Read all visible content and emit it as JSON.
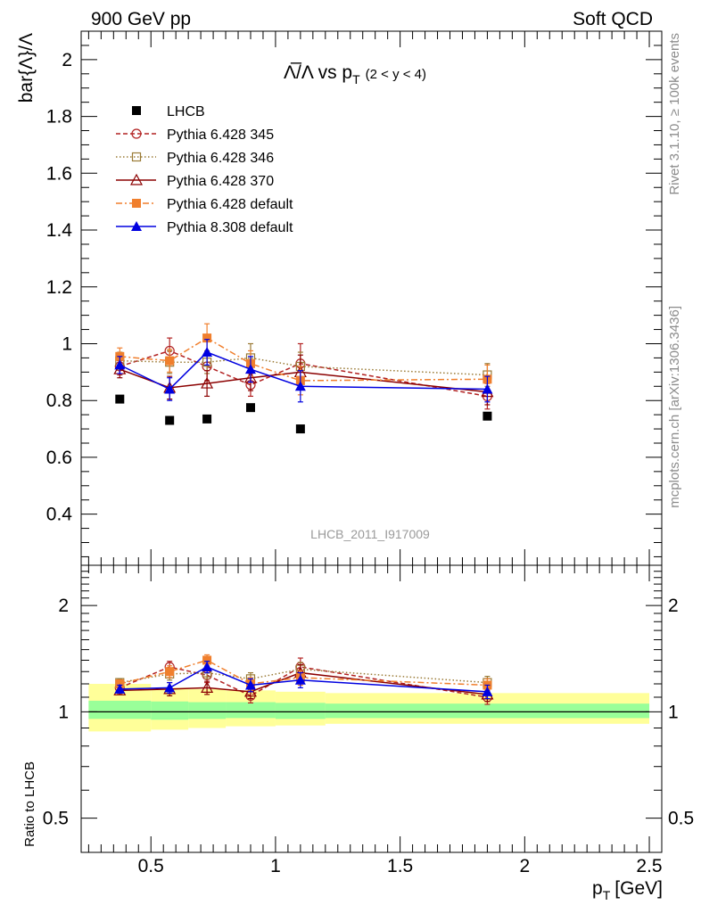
{
  "header": {
    "left": "900 GeV pp",
    "right": "Soft QCD"
  },
  "side": {
    "rivet": "Rivet 3.1.10, ≥ 100k events",
    "mcplots": "mcplots.cern.ch [arXiv:1306.3436]"
  },
  "chart_data": [
    {
      "type": "line",
      "title_main": "Λ̅/Λ vs p",
      "title_sub": "T",
      "title_cut": "(2 < y < 4)",
      "ylabel": "bar{Λ}/Λ",
      "watermark": "LHCB_2011_I917009",
      "xlim": [
        0.22,
        2.55
      ],
      "ylim": [
        0.22,
        2.1
      ],
      "yticks": [
        0.4,
        0.6,
        0.8,
        1.0,
        1.2,
        1.4,
        1.6,
        1.8,
        2.0
      ],
      "ytick_labels": [
        "0.4",
        "0.6",
        "0.8",
        "1",
        "1.2",
        "1.4",
        "1.6",
        "1.8",
        "2"
      ],
      "legend_position": "top-left",
      "series": [
        {
          "name": "LHCB",
          "color": "#000000",
          "marker": "square-filled",
          "dash": "none",
          "x": [
            0.375,
            0.575,
            0.725,
            0.9,
            1.1,
            1.85
          ],
          "y": [
            0.805,
            0.73,
            0.735,
            0.775,
            0.7,
            0.745
          ],
          "err": [
            0,
            0,
            0,
            0,
            0,
            0
          ]
        },
        {
          "name": "Pythia 6.428 345",
          "color": "#b22222",
          "marker": "circle-open",
          "dash": "5,3",
          "x": [
            0.375,
            0.575,
            0.725,
            0.9,
            1.1,
            1.85
          ],
          "y": [
            0.92,
            0.975,
            0.92,
            0.855,
            0.93,
            0.815
          ],
          "err": [
            0.03,
            0.045,
            0.05,
            0.04,
            0.07,
            0.045
          ]
        },
        {
          "name": "Pythia 6.428 346",
          "color": "#9a7a35",
          "marker": "square-open",
          "dash": "1.5,2.5",
          "x": [
            0.375,
            0.575,
            0.725,
            0.9,
            1.1,
            1.85
          ],
          "y": [
            0.94,
            0.935,
            0.935,
            0.95,
            0.92,
            0.89
          ],
          "err": [
            0.03,
            0.04,
            0.04,
            0.05,
            0.05,
            0.04
          ]
        },
        {
          "name": "Pythia 6.428 370",
          "color": "#8b0000",
          "marker": "triangle-open",
          "dash": "none",
          "x": [
            0.375,
            0.575,
            0.725,
            0.9,
            1.1,
            1.85
          ],
          "y": [
            0.91,
            0.845,
            0.86,
            0.88,
            0.9,
            0.83
          ],
          "err": [
            0.03,
            0.04,
            0.045,
            0.045,
            0.06,
            0.045
          ]
        },
        {
          "name": "Pythia 6.428 default",
          "color": "#f07f2d",
          "marker": "square-filled",
          "dash": "7,3,2,3",
          "x": [
            0.375,
            0.575,
            0.725,
            0.9,
            1.1,
            1.85
          ],
          "y": [
            0.955,
            0.94,
            1.02,
            0.93,
            0.87,
            0.875
          ],
          "err": [
            0.03,
            0.04,
            0.05,
            0.045,
            0.05,
            0.05
          ]
        },
        {
          "name": "Pythia 8.308 default",
          "color": "#0000e0",
          "marker": "triangle-filled",
          "dash": "none",
          "x": [
            0.375,
            0.575,
            0.725,
            0.9,
            1.1,
            1.85
          ],
          "y": [
            0.925,
            0.84,
            0.97,
            0.91,
            0.85,
            0.84
          ],
          "err": [
            0.03,
            0.04,
            0.045,
            0.045,
            0.055,
            0.045
          ]
        }
      ]
    },
    {
      "type": "line",
      "ylabel": "Ratio to LHCB",
      "xlabel_main": "p",
      "xlabel_sub": "T",
      "xlabel_unit": "[GeV]",
      "xlim": [
        0.22,
        2.55
      ],
      "yscale": "log",
      "ylim": [
        0.4,
        2.6
      ],
      "yticks": [
        0.5,
        1,
        2
      ],
      "ytick_labels": [
        "0.5",
        "1",
        "2"
      ],
      "xticks": [
        0.5,
        1.0,
        1.5,
        2.0,
        2.5
      ],
      "xtick_labels": [
        "0.5",
        "1",
        "1.5",
        "2",
        "2.5"
      ],
      "band_edges": [
        0.25,
        0.5,
        0.65,
        0.8,
        1.0,
        1.2,
        2.5
      ],
      "band_yellow": [
        [
          0.88,
          1.2
        ],
        [
          0.89,
          1.17
        ],
        [
          0.9,
          1.16
        ],
        [
          0.91,
          1.15
        ],
        [
          0.915,
          1.14
        ],
        [
          0.925,
          1.13
        ]
      ],
      "band_green": [
        [
          0.955,
          1.075
        ],
        [
          0.95,
          1.07
        ],
        [
          0.955,
          1.065
        ],
        [
          0.96,
          1.065
        ],
        [
          0.955,
          1.06
        ],
        [
          0.96,
          1.055
        ]
      ],
      "series": [
        {
          "name": "Pythia 6.428 345",
          "color": "#b22222",
          "marker": "circle-open",
          "dash": "5,3",
          "x": [
            0.375,
            0.575,
            0.725,
            0.9,
            1.1,
            1.85
          ],
          "y": [
            1.17,
            1.34,
            1.27,
            1.11,
            1.34,
            1.1
          ],
          "err": [
            0.03,
            0.05,
            0.06,
            0.05,
            0.08,
            0.05
          ]
        },
        {
          "name": "Pythia 6.428 346",
          "color": "#9a7a35",
          "marker": "square-open",
          "dash": "1.5,2.5",
          "x": [
            0.375,
            0.575,
            0.725,
            0.9,
            1.1,
            1.85
          ],
          "y": [
            1.21,
            1.28,
            1.29,
            1.24,
            1.32,
            1.21
          ],
          "err": [
            0.03,
            0.05,
            0.05,
            0.05,
            0.06,
            0.05
          ]
        },
        {
          "name": "Pythia 6.428 370",
          "color": "#8b0000",
          "marker": "triangle-open",
          "dash": "none",
          "x": [
            0.375,
            0.575,
            0.725,
            0.9,
            1.1,
            1.85
          ],
          "y": [
            1.15,
            1.16,
            1.17,
            1.14,
            1.29,
            1.12
          ],
          "err": [
            0.03,
            0.05,
            0.05,
            0.05,
            0.07,
            0.05
          ]
        },
        {
          "name": "Pythia 6.428 default",
          "color": "#f07f2d",
          "marker": "square-filled",
          "dash": "7,3,2,3",
          "x": [
            0.375,
            0.575,
            0.725,
            0.9,
            1.1,
            1.85
          ],
          "y": [
            1.2,
            1.3,
            1.4,
            1.2,
            1.25,
            1.19
          ],
          "err": [
            0.03,
            0.05,
            0.05,
            0.05,
            0.06,
            0.05
          ]
        },
        {
          "name": "Pythia 8.308 default",
          "color": "#0000e0",
          "marker": "triangle-filled",
          "dash": "none",
          "x": [
            0.375,
            0.575,
            0.725,
            0.9,
            1.1,
            1.85
          ],
          "y": [
            1.16,
            1.17,
            1.34,
            1.19,
            1.23,
            1.14
          ],
          "err": [
            0.03,
            0.04,
            0.05,
            0.05,
            0.06,
            0.05
          ]
        }
      ]
    }
  ]
}
